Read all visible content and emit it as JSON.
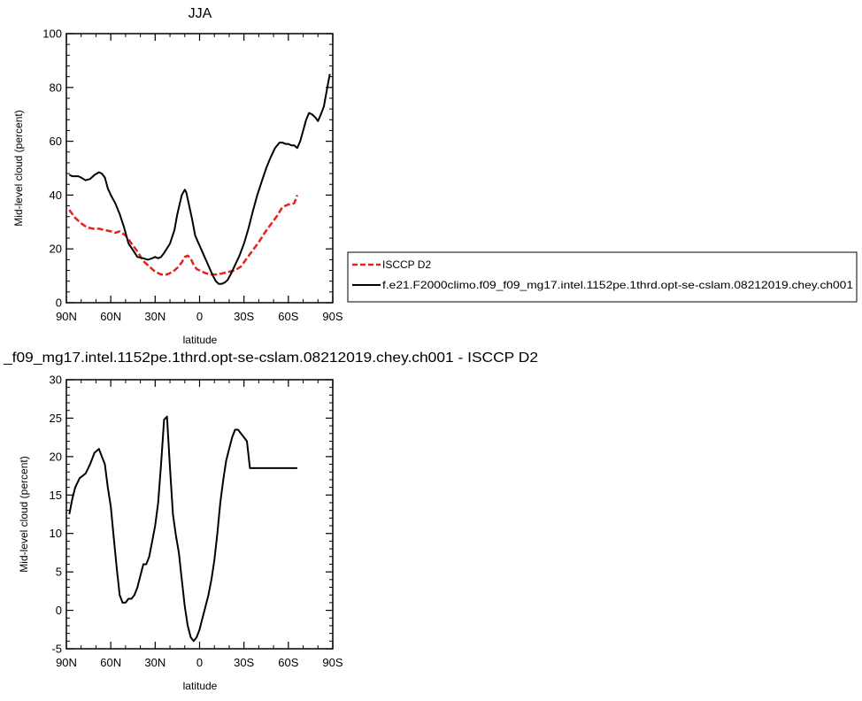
{
  "chart_data": [
    {
      "type": "line",
      "title": "JJA",
      "xlabel": "latitude",
      "ylabel": "Mid-level cloud (percent)",
      "xlim": [
        -90,
        90
      ],
      "ylim": [
        0,
        100
      ],
      "x_tick_values": [
        -90,
        -60,
        -30,
        0,
        30,
        60,
        90
      ],
      "x_tick_labels": [
        "90N",
        "60N",
        "30N",
        "0",
        "30S",
        "60S",
        "90S"
      ],
      "y_tick_values": [
        0,
        20,
        40,
        60,
        80,
        100
      ],
      "y_tick_labels": [
        "0",
        "20",
        "40",
        "60",
        "80",
        "100"
      ],
      "legend_position": "right",
      "series": [
        {
          "name": "ISCCP D2",
          "color": "#e8211c",
          "dash": "dashed",
          "x": [
            -88,
            -84,
            -80,
            -76,
            -72,
            -68,
            -64,
            -60,
            -57,
            -54,
            -50,
            -46,
            -42,
            -38,
            -34,
            -30,
            -26,
            -22,
            -18,
            -15,
            -12,
            -10,
            -8,
            -6,
            -4,
            -2,
            0,
            4,
            8,
            12,
            16,
            20,
            24,
            28,
            32,
            36,
            40,
            44,
            48,
            52,
            56,
            60,
            62,
            64,
            66
          ],
          "y": [
            34.5,
            31.5,
            29.5,
            28,
            27.5,
            27.5,
            27,
            26.5,
            26,
            26.5,
            25,
            22,
            19,
            15.5,
            13.5,
            11.5,
            10.5,
            10.5,
            11.5,
            13,
            15,
            17,
            17.5,
            16.5,
            14,
            12.5,
            12,
            11,
            10.5,
            10.5,
            11,
            11.5,
            12,
            13.5,
            16.5,
            19.5,
            22.5,
            26,
            29,
            32,
            35.5,
            36.5,
            36.5,
            37,
            40
          ]
        },
        {
          "name": "f.e21.F2000climo.f09_f09_mg17.intel.1152pe.1thrd.opt-se-cslam.08212019.chey.ch001",
          "color": "#000000",
          "dash": "solid",
          "x": [
            -88,
            -86,
            -84,
            -82,
            -80,
            -77,
            -74,
            -71,
            -68,
            -66,
            -64,
            -62,
            -60,
            -57,
            -54,
            -51,
            -48,
            -45,
            -42,
            -38,
            -35,
            -32,
            -30,
            -28,
            -26,
            -24,
            -20,
            -17,
            -15,
            -12,
            -10,
            -9,
            -7,
            -5,
            -3,
            -1,
            1,
            3,
            5,
            7,
            9,
            11,
            13,
            15,
            17,
            19,
            21,
            24,
            27,
            30,
            33,
            36,
            39,
            42,
            45,
            48,
            51,
            54,
            56,
            58,
            60,
            62,
            64,
            66,
            68,
            70,
            72,
            74,
            76,
            78,
            80,
            82,
            84,
            86,
            88
          ],
          "y": [
            47.5,
            47,
            47,
            47,
            46.5,
            45.5,
            46,
            47.5,
            48.5,
            48,
            46.5,
            42.5,
            40,
            37,
            33,
            28,
            22,
            19.5,
            17,
            16.5,
            16,
            16.5,
            17,
            16.5,
            17,
            18.5,
            22,
            27,
            33,
            40,
            42,
            41,
            36,
            31,
            25,
            22.5,
            20,
            17.5,
            15,
            12.5,
            10,
            8,
            7,
            7,
            7.5,
            8.5,
            10.5,
            14,
            17.5,
            22,
            27.5,
            34,
            40,
            45,
            50,
            54,
            57.5,
            59.5,
            59.5,
            59,
            59,
            58.5,
            58.5,
            57.5,
            60,
            64,
            68,
            70.5,
            70,
            69,
            67.5,
            70,
            73,
            79,
            85
          ]
        }
      ]
    },
    {
      "type": "line",
      "title": "_f09_mg17.intel.1152pe.1thrd.opt-se-cslam.08212019.chey.ch001 - ISCCP D2",
      "xlabel": "latitude",
      "ylabel": "Mid-level cloud (percent)",
      "xlim": [
        -90,
        90
      ],
      "ylim": [
        -5,
        30
      ],
      "x_tick_values": [
        -90,
        -60,
        -30,
        0,
        30,
        60,
        90
      ],
      "x_tick_labels": [
        "90N",
        "60N",
        "30N",
        "0",
        "30S",
        "60S",
        "90S"
      ],
      "y_tick_values": [
        -5,
        0,
        5,
        10,
        15,
        20,
        25,
        30
      ],
      "y_tick_labels": [
        "-5",
        "0",
        "5",
        "10",
        "15",
        "20",
        "25",
        "30"
      ],
      "series": [
        {
          "color": "#000000",
          "dash": "solid",
          "x": [
            -88,
            -86,
            -84,
            -81,
            -77,
            -74,
            -71,
            -68,
            -66,
            -64,
            -62,
            -60,
            -58,
            -56,
            -54,
            -52,
            -50,
            -48,
            -46,
            -44,
            -42,
            -40,
            -38,
            -36,
            -34,
            -32,
            -30,
            -28,
            -26,
            -24,
            -22,
            -20,
            -18,
            -16,
            -14,
            -12,
            -10,
            -8,
            -6,
            -4,
            -2,
            0,
            2,
            4,
            6,
            8,
            10,
            12,
            14,
            16,
            18,
            20,
            22,
            24,
            26,
            28,
            30,
            32,
            34,
            36,
            38,
            40,
            42,
            44,
            46,
            48,
            50,
            52,
            54,
            56,
            58,
            60,
            62,
            64,
            66
          ],
          "y": [
            12.5,
            14.5,
            16,
            17.2,
            17.8,
            19,
            20.5,
            21,
            20,
            19,
            16,
            13.5,
            9.5,
            5.5,
            2,
            1,
            1,
            1.5,
            1.5,
            2,
            3,
            4.5,
            6,
            6,
            7,
            9,
            11,
            14,
            19,
            24.8,
            25.2,
            18.5,
            12.5,
            9.8,
            7.5,
            4,
            0.5,
            -2,
            -3.5,
            -4,
            -3.5,
            -2.5,
            -1,
            0.5,
            2,
            4,
            6.5,
            10,
            14,
            17,
            19.5,
            21,
            22.5,
            23.5,
            23.5,
            23,
            22.5,
            22,
            18.5,
            18.5,
            18.5,
            18.5,
            18.5,
            18.5,
            18.5,
            18.5,
            18.5,
            18.5,
            18.5,
            18.5,
            18.5,
            18.5,
            18.5,
            18.5,
            18.5
          ]
        }
      ]
    }
  ],
  "legend": {
    "entries": [
      {
        "label": "ISCCP D2",
        "color": "#e8211c",
        "dash": "dashed"
      },
      {
        "label": "f.e21.F2000climo.f09_f09_mg17.intel.1152pe.1thrd.opt-se-cslam.08212019.chey.ch001",
        "color": "#000000",
        "dash": "solid"
      }
    ]
  }
}
